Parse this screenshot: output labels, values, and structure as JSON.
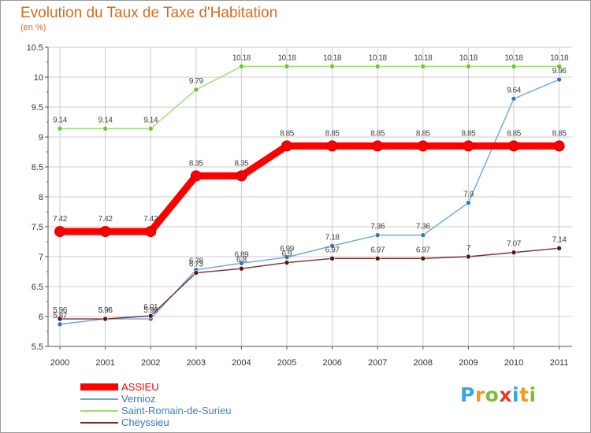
{
  "header": {
    "title": "Evolution du Taux de Taxe d'Habitation",
    "subtitle": "(en %)"
  },
  "logo": {
    "letters": [
      "P",
      "r",
      "o",
      "x",
      "i",
      "t",
      "i"
    ],
    "colors": [
      "#3aa6d6",
      "#f39a1e",
      "#7cbf3a",
      "#e23a2e",
      "#3aa6d6",
      "#f39a1e",
      "#7cbf3a"
    ]
  },
  "chart_data": {
    "type": "line",
    "x": [
      "2000",
      "2001",
      "2002",
      "2003",
      "2004",
      "2005",
      "2006",
      "2007",
      "2008",
      "2009",
      "2010",
      "2011"
    ],
    "y_ticks": [
      "5.5",
      "6",
      "6.5",
      "7",
      "7.5",
      "8",
      "8.5",
      "9",
      "9.5",
      "10",
      "10.5"
    ],
    "ylim": [
      5.5,
      10.5
    ],
    "grid": true,
    "legend_position": "bottom-left",
    "series": [
      {
        "name": "ASSIEU",
        "color": "#ff0000",
        "values": [
          7.42,
          7.42,
          7.42,
          8.35,
          8.35,
          8.85,
          8.85,
          8.85,
          8.85,
          8.85,
          8.85,
          8.85
        ],
        "labels": [
          "7.42",
          "7.42",
          "7.42",
          "8.35",
          "8.35",
          "8.85",
          "8.85",
          "8.85",
          "8.85",
          "8.85",
          "8.85",
          "8.85"
        ]
      },
      {
        "name": "Vernioz",
        "color": "#3b82c4",
        "values": [
          5.87,
          5.96,
          5.96,
          6.78,
          6.89,
          6.99,
          7.18,
          7.36,
          7.36,
          7.9,
          9.64,
          9.96
        ],
        "labels": [
          "5.87",
          "5.96",
          "5.96",
          "6.78",
          "6.89",
          "6.99",
          "7.18",
          "7.36",
          "7.36",
          "7.9",
          "9.64",
          "9.96"
        ]
      },
      {
        "name": "Saint-Romain-de-Surieu",
        "color": "#66cc22",
        "values": [
          9.14,
          9.14,
          9.14,
          9.79,
          10.18,
          10.18,
          10.18,
          10.18,
          10.18,
          10.18,
          10.18,
          10.18
        ],
        "labels": [
          "9.14",
          "9.14",
          "9.14",
          "9.79",
          "10.18",
          "10.18",
          "10.18",
          "10.18",
          "10.18",
          "10.18",
          "10.18",
          "10.18"
        ]
      },
      {
        "name": "Cheyssieu",
        "color": "#6b1e1e",
        "values": [
          5.96,
          5.96,
          6.01,
          6.73,
          6.8,
          6.9,
          6.97,
          6.97,
          6.97,
          7,
          7.07,
          7.14
        ],
        "labels": [
          "5.96",
          "5.96",
          "6.01",
          "6.73",
          "6.8",
          "6.9",
          "6.97",
          "6.97",
          "6.97",
          "7",
          "7.07",
          "7.14"
        ]
      }
    ]
  }
}
